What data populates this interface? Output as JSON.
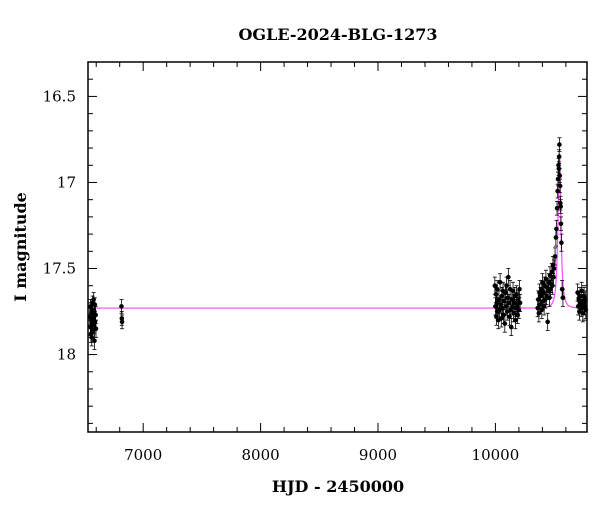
{
  "chart_data": {
    "type": "scatter",
    "title": "OGLE-2024-BLG-1273",
    "xlabel": "HJD - 2450000",
    "ylabel": "I magnitude",
    "xlim": [
      6530,
      10780
    ],
    "ylim": [
      18.45,
      16.3
    ],
    "y_inverted": true,
    "grid": false,
    "legend": "none",
    "x_ticks": [
      {
        "value": 7000,
        "label": "7000"
      },
      {
        "value": 8000,
        "label": "8000"
      },
      {
        "value": 9000,
        "label": "9000"
      },
      {
        "value": 10000,
        "label": "10000"
      }
    ],
    "y_ticks": [
      {
        "value": 16.5,
        "label": "16.5"
      },
      {
        "value": 17,
        "label": "17"
      },
      {
        "value": 17.5,
        "label": "17.5"
      },
      {
        "value": 18,
        "label": "18"
      }
    ],
    "model_curve": {
      "color": "#ff55ff",
      "baseline_mag": 17.73,
      "peak_time": 10545,
      "peak_mag": 16.83,
      "width_days": 22
    },
    "points": [
      [
        6545,
        17.78,
        0.05
      ],
      [
        6550,
        17.84,
        0.05
      ],
      [
        6552,
        17.72,
        0.04
      ],
      [
        6555,
        17.88,
        0.05
      ],
      [
        6558,
        17.8,
        0.05
      ],
      [
        6560,
        17.76,
        0.04
      ],
      [
        6562,
        17.9,
        0.05
      ],
      [
        6565,
        17.74,
        0.05
      ],
      [
        6567,
        17.82,
        0.05
      ],
      [
        6570,
        17.7,
        0.04
      ],
      [
        6572,
        17.86,
        0.05
      ],
      [
        6575,
        17.79,
        0.05
      ],
      [
        6578,
        17.68,
        0.04
      ],
      [
        6580,
        17.83,
        0.05
      ],
      [
        6583,
        17.75,
        0.05
      ],
      [
        6585,
        17.92,
        0.05
      ],
      [
        6588,
        17.71,
        0.04
      ],
      [
        6590,
        17.81,
        0.05
      ],
      [
        6595,
        17.77,
        0.05
      ],
      [
        6598,
        17.85,
        0.05
      ],
      [
        6815,
        17.72,
        0.04
      ],
      [
        6818,
        17.79,
        0.04
      ],
      [
        6820,
        17.81,
        0.04
      ],
      [
        9995,
        17.6,
        0.05
      ],
      [
        10000,
        17.72,
        0.05
      ],
      [
        10005,
        17.65,
        0.05
      ],
      [
        10008,
        17.78,
        0.05
      ],
      [
        10012,
        17.7,
        0.05
      ],
      [
        10015,
        17.62,
        0.05
      ],
      [
        10020,
        17.75,
        0.05
      ],
      [
        10025,
        17.8,
        0.05
      ],
      [
        10030,
        17.68,
        0.05
      ],
      [
        10035,
        17.74,
        0.05
      ],
      [
        10040,
        17.58,
        0.05
      ],
      [
        10045,
        17.71,
        0.05
      ],
      [
        10050,
        17.79,
        0.05
      ],
      [
        10055,
        17.66,
        0.05
      ],
      [
        10060,
        17.73,
        0.05
      ],
      [
        10065,
        17.63,
        0.05
      ],
      [
        10070,
        17.77,
        0.05
      ],
      [
        10075,
        17.69,
        0.05
      ],
      [
        10080,
        17.82,
        0.05
      ],
      [
        10085,
        17.64,
        0.05
      ],
      [
        10090,
        17.72,
        0.05
      ],
      [
        10095,
        17.6,
        0.05
      ],
      [
        10100,
        17.75,
        0.05
      ],
      [
        10105,
        17.67,
        0.05
      ],
      [
        10110,
        17.55,
        0.05
      ],
      [
        10115,
        17.7,
        0.05
      ],
      [
        10120,
        17.78,
        0.05
      ],
      [
        10125,
        17.62,
        0.05
      ],
      [
        10130,
        17.74,
        0.05
      ],
      [
        10135,
        17.84,
        0.05
      ],
      [
        10140,
        17.68,
        0.05
      ],
      [
        10145,
        17.72,
        0.05
      ],
      [
        10150,
        17.63,
        0.05
      ],
      [
        10155,
        17.76,
        0.05
      ],
      [
        10160,
        17.7,
        0.05
      ],
      [
        10165,
        17.66,
        0.05
      ],
      [
        10170,
        17.8,
        0.05
      ],
      [
        10175,
        17.73,
        0.05
      ],
      [
        10180,
        17.65,
        0.05
      ],
      [
        10185,
        17.71,
        0.05
      ],
      [
        10190,
        17.77,
        0.05
      ],
      [
        10195,
        17.68,
        0.05
      ],
      [
        10200,
        17.74,
        0.05
      ],
      [
        10205,
        17.62,
        0.05
      ],
      [
        10210,
        17.7,
        0.05
      ],
      [
        10360,
        17.73,
        0.05
      ],
      [
        10365,
        17.68,
        0.05
      ],
      [
        10370,
        17.76,
        0.05
      ],
      [
        10375,
        17.64,
        0.05
      ],
      [
        10380,
        17.71,
        0.05
      ],
      [
        10385,
        17.66,
        0.05
      ],
      [
        10390,
        17.62,
        0.05
      ],
      [
        10395,
        17.74,
        0.05
      ],
      [
        10400,
        17.58,
        0.05
      ],
      [
        10405,
        17.69,
        0.05
      ],
      [
        10410,
        17.64,
        0.05
      ],
      [
        10415,
        17.72,
        0.05
      ],
      [
        10420,
        17.6,
        0.05
      ],
      [
        10425,
        17.68,
        0.05
      ],
      [
        10430,
        17.56,
        0.05
      ],
      [
        10435,
        17.66,
        0.05
      ],
      [
        10440,
        17.61,
        0.05
      ],
      [
        10445,
        17.81,
        0.05
      ],
      [
        10450,
        17.63,
        0.05
      ],
      [
        10455,
        17.58,
        0.05
      ],
      [
        10460,
        17.67,
        0.05
      ],
      [
        10465,
        17.54,
        0.05
      ],
      [
        10470,
        17.62,
        0.05
      ],
      [
        10475,
        17.59,
        0.05
      ],
      [
        10480,
        17.52,
        0.05
      ],
      [
        10485,
        17.6,
        0.05
      ],
      [
        10490,
        17.48,
        0.05
      ],
      [
        10495,
        17.55,
        0.05
      ],
      [
        10500,
        17.5,
        0.05
      ],
      [
        10508,
        17.43,
        0.05
      ],
      [
        10515,
        17.32,
        0.05
      ],
      [
        10520,
        17.27,
        0.05
      ],
      [
        10525,
        17.15,
        0.04
      ],
      [
        10530,
        17.05,
        0.04
      ],
      [
        10533,
        16.98,
        0.04
      ],
      [
        10537,
        16.9,
        0.04
      ],
      [
        10540,
        16.92,
        0.04
      ],
      [
        10543,
        16.85,
        0.04
      ],
      [
        10545,
        16.78,
        0.04
      ],
      [
        10548,
        16.96,
        0.04
      ],
      [
        10551,
        17.02,
        0.04
      ],
      [
        10553,
        17.12,
        0.04
      ],
      [
        10556,
        17.14,
        0.04
      ],
      [
        10558,
        17.24,
        0.04
      ],
      [
        10562,
        17.35,
        0.05
      ],
      [
        10568,
        17.62,
        0.05
      ],
      [
        10575,
        17.67,
        0.05
      ],
      [
        10700,
        17.64,
        0.05
      ],
      [
        10705,
        17.72,
        0.05
      ],
      [
        10710,
        17.68,
        0.05
      ],
      [
        10715,
        17.75,
        0.05
      ],
      [
        10720,
        17.66,
        0.05
      ],
      [
        10725,
        17.7,
        0.05
      ],
      [
        10730,
        17.73,
        0.05
      ],
      [
        10735,
        17.63,
        0.05
      ],
      [
        10740,
        17.71,
        0.05
      ],
      [
        10745,
        17.76,
        0.05
      ],
      [
        10750,
        17.69,
        0.05
      ],
      [
        10755,
        17.66,
        0.05
      ],
      [
        10760,
        17.72,
        0.05
      ],
      [
        10765,
        17.68,
        0.05
      ],
      [
        10770,
        17.74,
        0.05
      ]
    ]
  }
}
